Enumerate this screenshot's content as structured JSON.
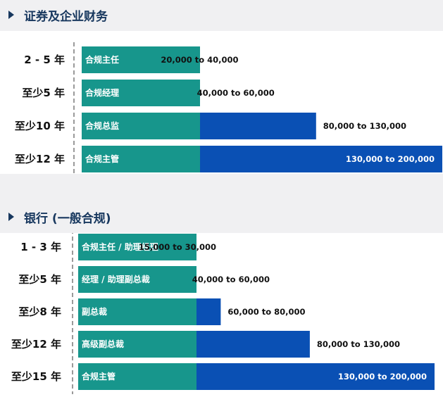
{
  "colors": {
    "teal": "#17968c",
    "blue": "#0a50b4",
    "label": "#111111",
    "title": "#17375e"
  },
  "chart_data": [
    {
      "type": "bar",
      "orientation": "horizontal",
      "stacked": true,
      "title": "证券及企业财务",
      "categories": [
        "2 - 5 年",
        "至少5 年",
        "至少10 年",
        "至少12 年"
      ],
      "roles": [
        "合规主任",
        "合规经理",
        "合规总监",
        "合规主管"
      ],
      "value_labels": [
        "20,000 to 40,000",
        "40,000 to 60,000",
        "80,000 to 130,000",
        "130,000 to 200,000"
      ],
      "series": [
        {
          "values": [
            20000,
            40000,
            80000,
            130000
          ]
        },
        {
          "values": [
            20000,
            20000,
            50000,
            70000
          ]
        }
      ],
      "xlim": [
        0,
        200000
      ]
    },
    {
      "type": "bar",
      "orientation": "horizontal",
      "stacked": true,
      "title": "银行 (一般合规)",
      "categories": [
        "1 - 3 年",
        "至少5 年",
        "至少8 年",
        "至少12 年",
        "至少15 年"
      ],
      "roles": [
        "合规主任 / 助理经理",
        "经理 / 助理副总裁",
        "副总裁",
        "高级副总裁",
        "合规主管"
      ],
      "value_labels": [
        "15,000 to 30,000",
        "40,000 to 60,000",
        "60,000 to 80,000",
        "80,000 to 130,000",
        "130,000 to 200,000"
      ],
      "series": [
        {
          "values": [
            15000,
            40000,
            60000,
            80000,
            130000
          ]
        },
        {
          "values": [
            15000,
            20000,
            20000,
            50000,
            70000
          ]
        }
      ],
      "xlim": [
        0,
        200000
      ]
    }
  ]
}
